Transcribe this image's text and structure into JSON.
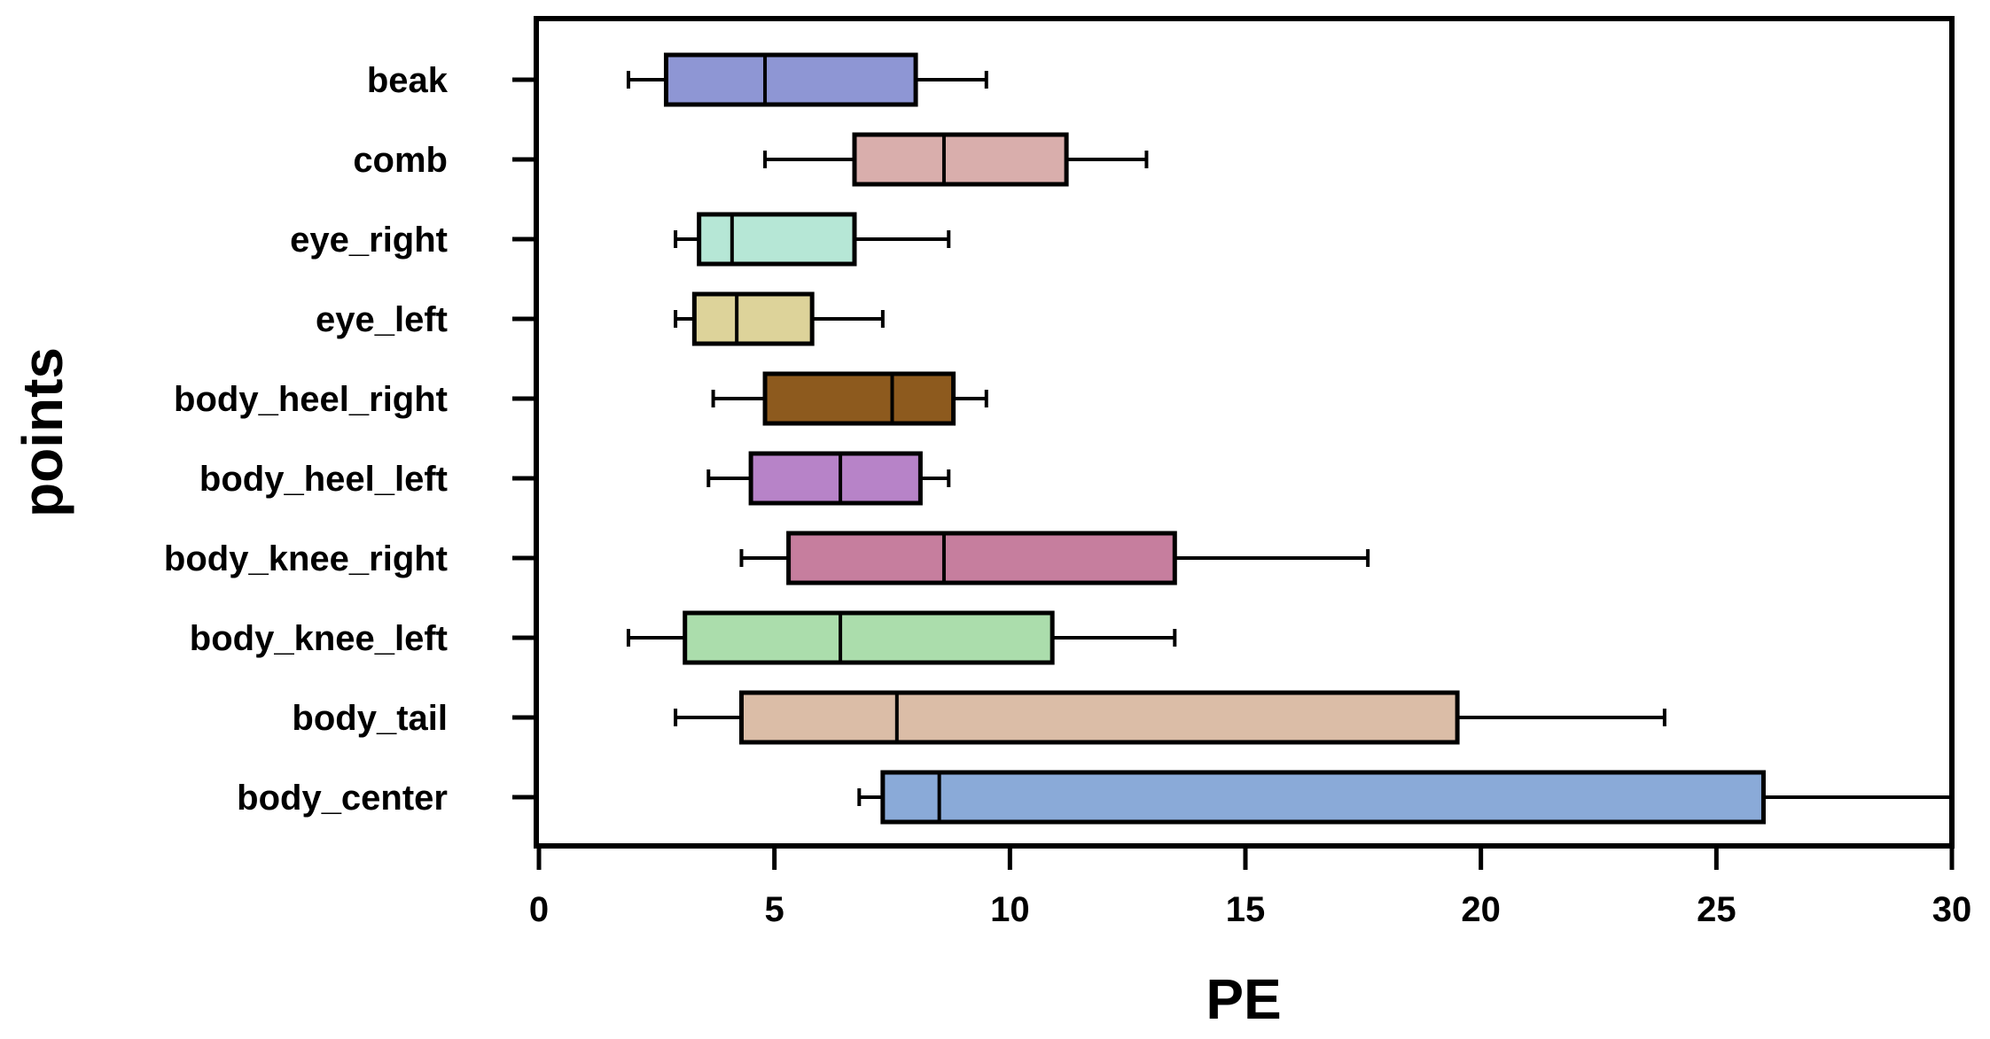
{
  "chart_data": {
    "type": "boxplot",
    "orientation": "horizontal",
    "xlabel": "PE",
    "ylabel": "points",
    "xlim": [
      0,
      30
    ],
    "xticks": [
      0,
      5,
      10,
      15,
      20,
      25,
      30
    ],
    "grid": false,
    "categories": [
      "beak",
      "comb",
      "eye_right",
      "eye_left",
      "body_heel_right",
      "body_heel_left",
      "body_knee_right",
      "body_knee_left",
      "body_tail",
      "body_center"
    ],
    "boxes": [
      {
        "category": "beak",
        "whisker_low": 1.9,
        "q1": 2.7,
        "median": 4.8,
        "q3": 8.0,
        "whisker_high": 9.5,
        "color": "#8e96d4"
      },
      {
        "category": "comb",
        "whisker_low": 4.8,
        "q1": 6.7,
        "median": 8.6,
        "q3": 11.2,
        "whisker_high": 12.9,
        "color": "#d9aeac"
      },
      {
        "category": "eye_right",
        "whisker_low": 2.9,
        "q1": 3.4,
        "median": 4.1,
        "q3": 6.7,
        "whisker_high": 8.7,
        "color": "#b6e7d6"
      },
      {
        "category": "eye_left",
        "whisker_low": 2.9,
        "q1": 3.3,
        "median": 4.2,
        "q3": 5.8,
        "whisker_high": 7.3,
        "color": "#ddd39a"
      },
      {
        "category": "body_heel_right",
        "whisker_low": 3.7,
        "q1": 4.8,
        "median": 7.5,
        "q3": 8.8,
        "whisker_high": 9.5,
        "color": "#8d5a1e"
      },
      {
        "category": "body_heel_left",
        "whisker_low": 3.6,
        "q1": 4.5,
        "median": 6.4,
        "q3": 8.1,
        "whisker_high": 8.7,
        "color": "#b783c8"
      },
      {
        "category": "body_knee_right",
        "whisker_low": 4.3,
        "q1": 5.3,
        "median": 8.6,
        "q3": 13.5,
        "whisker_high": 17.6,
        "color": "#c67e9e"
      },
      {
        "category": "body_knee_left",
        "whisker_low": 1.9,
        "q1": 3.1,
        "median": 6.4,
        "q3": 10.9,
        "whisker_high": 13.5,
        "color": "#abddac"
      },
      {
        "category": "body_tail",
        "whisker_low": 2.9,
        "q1": 4.3,
        "median": 7.6,
        "q3": 19.5,
        "whisker_high": 23.9,
        "color": "#dbbda7"
      },
      {
        "category": "body_center",
        "whisker_low": 6.8,
        "q1": 7.3,
        "median": 8.5,
        "q3": 26.0,
        "whisker_high": 30.0,
        "color": "#8aaad8"
      }
    ]
  }
}
